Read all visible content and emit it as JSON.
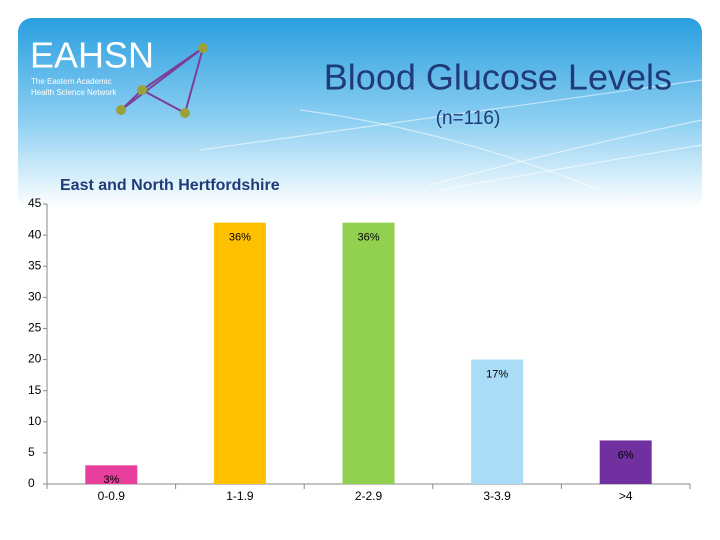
{
  "logo": {
    "name": "EAHSN",
    "tagline": [
      "The Eastern Academic",
      "Health Science Network"
    ]
  },
  "chart_data": {
    "type": "bar",
    "title": "Blood Glucose Levels",
    "subtitle": "(n=116)",
    "region_label": "East and North Hertfordshire",
    "categories": [
      "0-0.9",
      "1-1.9",
      "2-2.9",
      "3-3.9",
      ">4"
    ],
    "values": [
      3,
      42,
      42,
      20,
      7
    ],
    "value_labels": [
      "3%",
      "36%",
      "36%",
      "17%",
      "6%"
    ],
    "colors": [
      "#e83e9c",
      "#ffc000",
      "#92d050",
      "#a9dcf7",
      "#7030a0"
    ],
    "ylim": [
      0,
      45
    ],
    "yticks": [
      0,
      5,
      10,
      15,
      20,
      25,
      30,
      35,
      40,
      45
    ],
    "grid": false
  }
}
